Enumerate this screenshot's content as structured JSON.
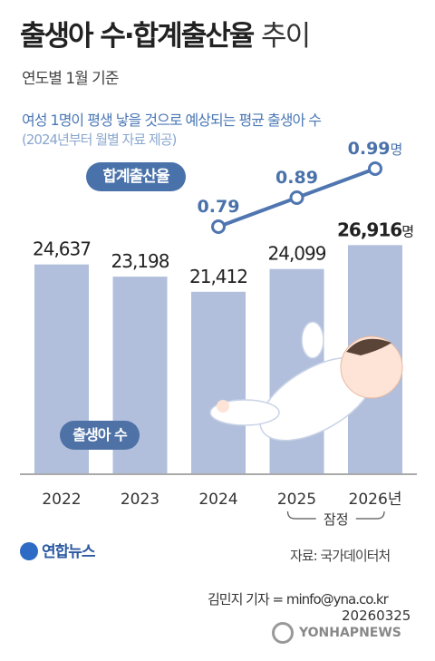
{
  "header": {
    "title_main": "출생아 수·합계출산율",
    "title_suffix": "추이",
    "subtitle": "연도별 1월 기준",
    "note_line1": "여성 1명이 평생 낳을 것으로 예상되는 평균 출생아 수",
    "note_line2": "(2024년부터 월별 자료 제공)"
  },
  "badges": {
    "rate": "합계출산율",
    "births": "출생아 수"
  },
  "footer": {
    "source": "자료: 국가데이터처",
    "credit": "김민지 기자 = minfo@yna.co.kr",
    "date": "20260325",
    "logo": "연합뉴스",
    "watermark": "YONHAPNEWS"
  },
  "colors": {
    "bar": "#b1bfdc",
    "line": "#4f76b0",
    "rate_label": "#4a72aa",
    "title": "#222222"
  },
  "chart_data": [
    {
      "type": "bar",
      "categories": [
        "2022",
        "2023",
        "2024",
        "2025",
        "2026"
      ],
      "category_suffix_last": "년",
      "values": [
        24637,
        23198,
        21412,
        24099,
        26916
      ],
      "labels": [
        "24,637",
        "23,198",
        "21,412",
        "24,099",
        "26,916"
      ],
      "last_label_suffix": "명",
      "provisional_note": "잠정",
      "provisional_categories": [
        "2025",
        "2026"
      ],
      "ylim": [
        0,
        27500
      ]
    },
    {
      "type": "line",
      "categories": [
        "2024",
        "2025",
        "2026"
      ],
      "values": [
        0.79,
        0.89,
        0.99
      ],
      "labels": [
        "0.79",
        "0.89",
        "0.99"
      ],
      "last_label_suffix": "명"
    }
  ]
}
